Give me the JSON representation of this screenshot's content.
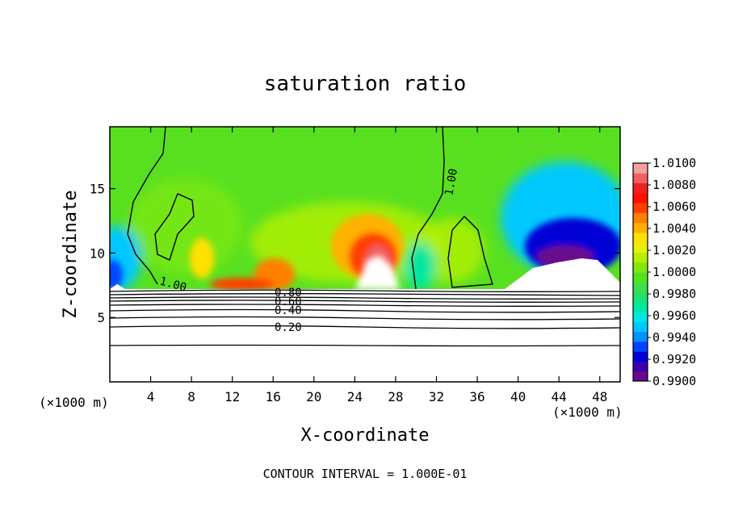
{
  "chart_data": {
    "type": "heatmap",
    "title": "saturation ratio",
    "xlabel": "X-coordinate",
    "ylabel": "Z-coordinate",
    "x_unit": "(×1000 m)",
    "x_unit_right": "(×1000 m)",
    "xlim": [
      0,
      50
    ],
    "ylim": [
      0,
      19.8
    ],
    "x_ticks": [
      4,
      8,
      12,
      16,
      20,
      24,
      28,
      32,
      36,
      40,
      44,
      48
    ],
    "y_ticks": [
      5,
      10,
      15
    ],
    "colorbar": {
      "range": [
        0.99,
        1.01
      ],
      "ticks": [
        "1.0100",
        "1.0080",
        "1.0060",
        "1.0040",
        "1.0020",
        "1.0000",
        "0.9980",
        "0.9960",
        "0.9940",
        "0.9920",
        "0.9900"
      ],
      "colors": [
        "#6a0a8a",
        "#3b00b0",
        "#0000d6",
        "#0044ff",
        "#0090ff",
        "#00c8ff",
        "#00e8e0",
        "#00e8a0",
        "#22e070",
        "#3ce048",
        "#58e020",
        "#80e810",
        "#b4f000",
        "#e8f000",
        "#ffe000",
        "#ffb000",
        "#ff8000",
        "#ff4000",
        "#ff1000",
        "#f02020",
        "#f06060",
        "#f4a0a0"
      ]
    },
    "line_contours": [
      {
        "label": "1.00"
      },
      {
        "label": "1.00"
      },
      {
        "label": "0.80"
      },
      {
        "label": "0.60"
      },
      {
        "label": "0.40"
      },
      {
        "label": "0.20"
      }
    ],
    "footnote": "CONTOUR INTERVAL = 1.000E-01"
  }
}
